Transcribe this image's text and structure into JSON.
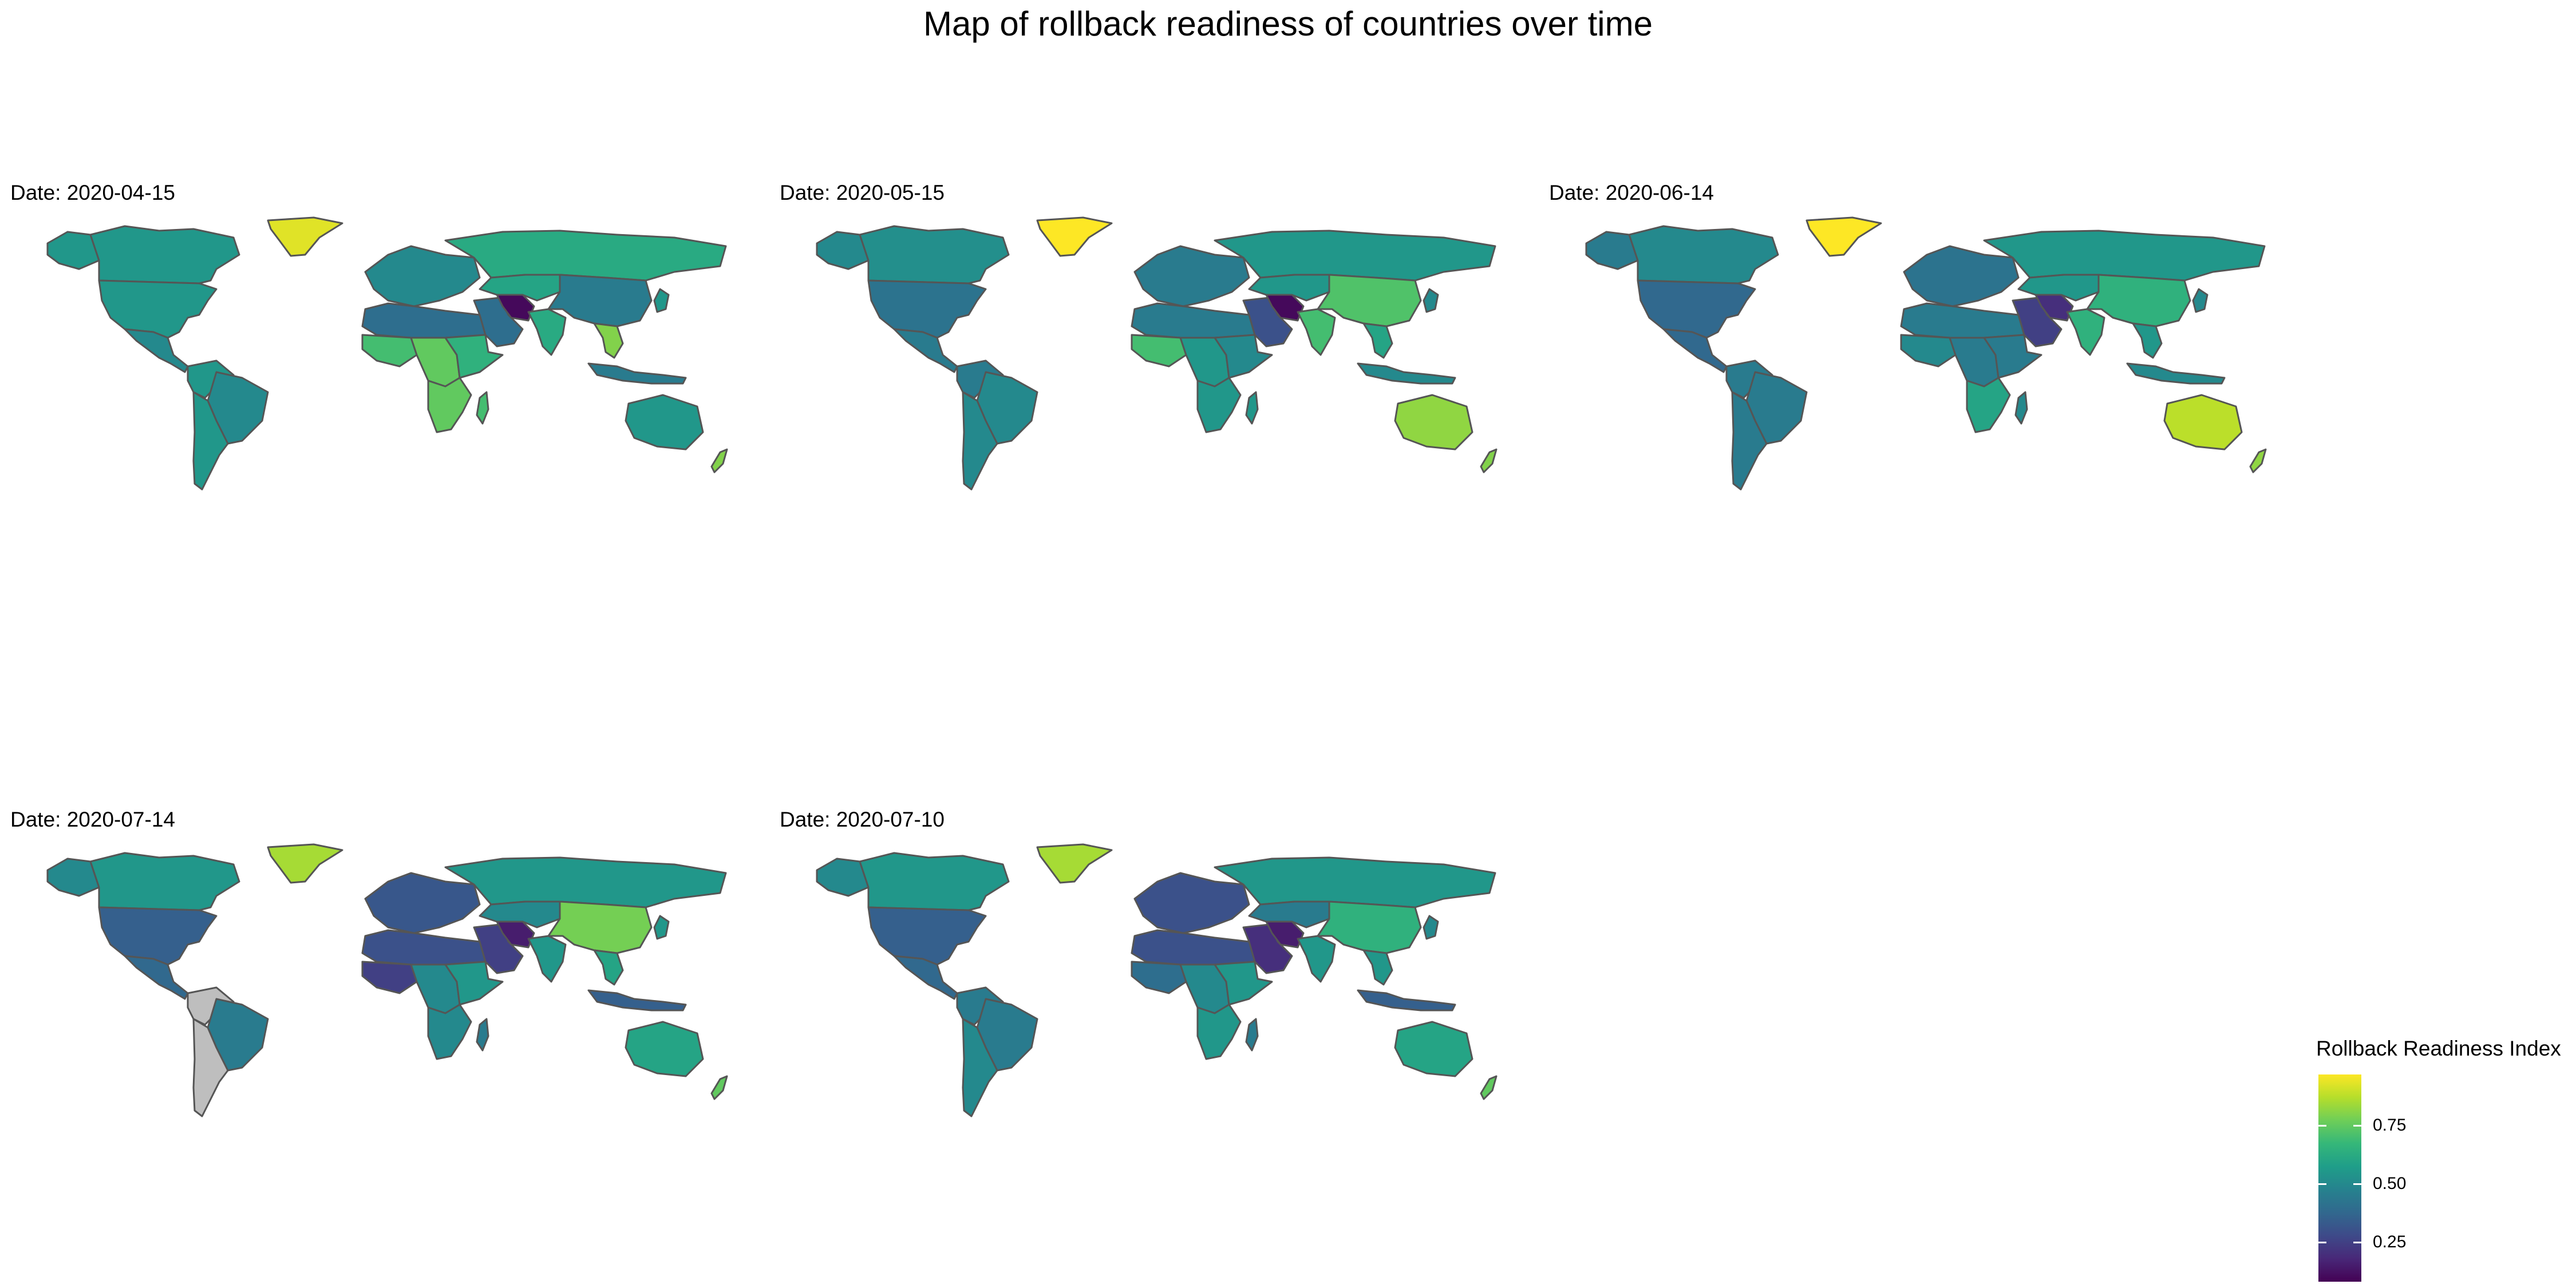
{
  "title": "Map of rollback readiness of countries over time",
  "legend": {
    "title": "Rollback Readiness Index",
    "breaks": [
      "0.25",
      "0.50",
      "0.75"
    ],
    "break_values": [
      0.25,
      0.5,
      0.75
    ],
    "range": [
      0.08,
      0.97
    ],
    "palette": "viridis"
  },
  "colors": {
    "land_outline": "#555555",
    "missing": "#bebebe",
    "viridis": [
      "#440154",
      "#482878",
      "#3e4a89",
      "#31688e",
      "#26828e",
      "#1f9e89",
      "#35b779",
      "#6ece58",
      "#b5de2b",
      "#fde725"
    ]
  },
  "chart_data": {
    "type": "choropleth",
    "variable": "Rollback Readiness Index",
    "scale": [
      0.08,
      0.97
    ],
    "panels": [
      {
        "label": "Date: 2020-04-15",
        "regions": {
          "north_america": 0.55,
          "greenland": 0.93,
          "canada": 0.55,
          "alaska": 0.55,
          "central_america": 0.5,
          "south_america_north": 0.55,
          "brazil": 0.5,
          "south_america_south": 0.55,
          "europe": 0.5,
          "russia": 0.62,
          "north_africa": 0.4,
          "west_africa": 0.7,
          "central_africa": 0.75,
          "southern_africa": 0.75,
          "horn_africa": 0.65,
          "madagascar": 0.7,
          "middle_east": 0.4,
          "iran": 0.1,
          "central_asia": 0.6,
          "south_asia": 0.62,
          "china": 0.45,
          "southeast_asia": 0.8,
          "japan": 0.55,
          "indonesia": 0.45,
          "australia": 0.55,
          "new_zealand": 0.8
        }
      },
      {
        "label": "Date: 2020-05-15",
        "regions": {
          "north_america": 0.42,
          "greenland": 0.97,
          "canada": 0.52,
          "alaska": 0.5,
          "central_america": 0.45,
          "south_america_north": 0.45,
          "brazil": 0.5,
          "south_america_south": 0.5,
          "europe": 0.45,
          "russia": 0.55,
          "north_africa": 0.45,
          "west_africa": 0.7,
          "central_africa": 0.55,
          "southern_africa": 0.55,
          "horn_africa": 0.5,
          "madagascar": 0.55,
          "middle_east": 0.3,
          "iran": 0.1,
          "central_asia": 0.55,
          "south_asia": 0.7,
          "china": 0.72,
          "southeast_asia": 0.6,
          "japan": 0.5,
          "indonesia": 0.5,
          "australia": 0.82,
          "new_zealand": 0.8
        }
      },
      {
        "label": "Date: 2020-06-14",
        "regions": {
          "north_america": 0.38,
          "greenland": 0.97,
          "canada": 0.5,
          "alaska": 0.45,
          "central_america": 0.38,
          "south_america_north": 0.45,
          "brazil": 0.45,
          "south_america_south": 0.45,
          "europe": 0.42,
          "russia": 0.55,
          "north_africa": 0.45,
          "west_africa": 0.5,
          "central_africa": 0.45,
          "southern_africa": 0.6,
          "horn_africa": 0.45,
          "madagascar": 0.5,
          "middle_east": 0.25,
          "iran": 0.2,
          "central_asia": 0.55,
          "south_asia": 0.65,
          "china": 0.65,
          "southeast_asia": 0.55,
          "japan": 0.5,
          "indonesia": 0.5,
          "australia": 0.88,
          "new_zealand": 0.82
        }
      },
      {
        "label": "Date: 2020-07-14",
        "regions": {
          "north_america": 0.35,
          "greenland": 0.85,
          "canada": 0.55,
          "alaska": 0.5,
          "central_america": 0.38,
          "south_america_north": null,
          "brazil": 0.45,
          "south_america_south": null,
          "europe": 0.32,
          "russia": 0.55,
          "north_africa": 0.3,
          "west_africa": 0.25,
          "central_africa": 0.5,
          "southern_africa": 0.5,
          "horn_africa": 0.55,
          "madagascar": 0.45,
          "middle_east": 0.25,
          "iran": 0.15,
          "central_asia": 0.5,
          "south_asia": 0.55,
          "china": 0.78,
          "southeast_asia": 0.6,
          "japan": 0.55,
          "indonesia": 0.35,
          "australia": 0.6,
          "new_zealand": 0.75
        }
      },
      {
        "label": "Date: 2020-07-10",
        "regions": {
          "north_america": 0.35,
          "greenland": 0.85,
          "canada": 0.55,
          "alaska": 0.5,
          "central_america": 0.38,
          "south_america_north": 0.45,
          "brazil": 0.45,
          "south_america_south": 0.5,
          "europe": 0.3,
          "russia": 0.55,
          "north_africa": 0.3,
          "west_africa": 0.4,
          "central_africa": 0.5,
          "southern_africa": 0.55,
          "horn_africa": 0.55,
          "madagascar": 0.45,
          "middle_east": 0.2,
          "iran": 0.15,
          "central_asia": 0.45,
          "south_asia": 0.55,
          "china": 0.65,
          "southeast_asia": 0.55,
          "japan": 0.5,
          "indonesia": 0.35,
          "australia": 0.6,
          "new_zealand": 0.75
        }
      }
    ]
  }
}
